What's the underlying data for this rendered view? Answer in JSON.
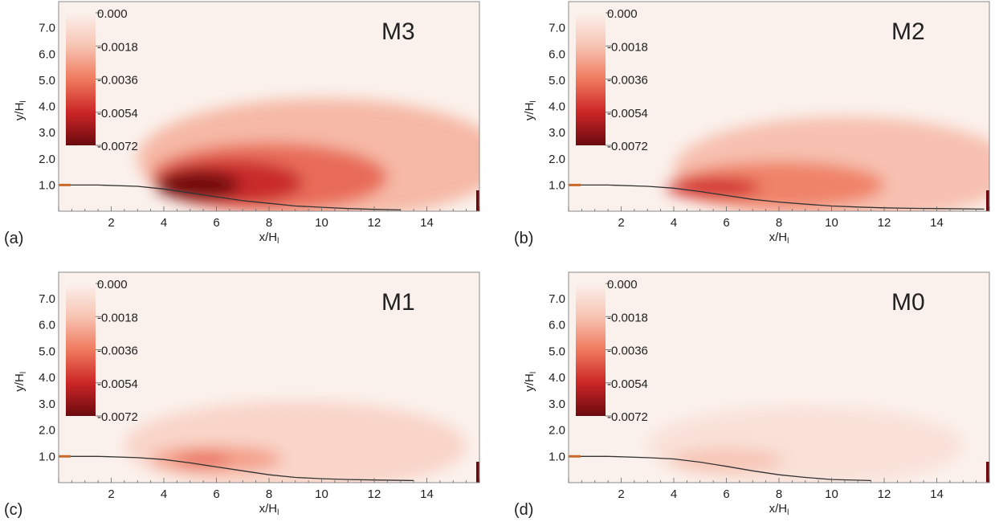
{
  "figure": {
    "colorbar": {
      "ticks": [
        "0.000",
        "-0.0018",
        "-0.0036",
        "-0.0054",
        "-0.0072"
      ],
      "colors": [
        "#fbf1ec",
        "#f7c4b3",
        "#ef7a5e",
        "#cc2626",
        "#6b0a0f"
      ]
    },
    "colors": {
      "background": "#fbf1ec",
      "frame": "#8a8a8a",
      "step_marker": "#c8692a",
      "interface_line": "#333333"
    }
  },
  "chart_data": [
    {
      "type": "heatmap",
      "panel_label": "(a)",
      "case_label": "M3",
      "xlabel": "x/H",
      "xlabel_sub": "l",
      "ylabel": "y/H",
      "ylabel_sub": "l",
      "xlim": [
        0,
        16
      ],
      "ylim": [
        0,
        8
      ],
      "x_ticks": [
        "2",
        "4",
        "6",
        "8",
        "10",
        "12",
        "14"
      ],
      "y_ticks": [
        "1.0",
        "2.0",
        "3.0",
        "4.0",
        "5.0",
        "6.0",
        "7.0"
      ],
      "colorbar_range": [
        -0.0072,
        0.0
      ],
      "interface_line": {
        "x": [
          0,
          1.5,
          3,
          4,
          5,
          6,
          7,
          8,
          9,
          10,
          11,
          12,
          13
        ],
        "y": [
          1.0,
          1.0,
          0.95,
          0.85,
          0.7,
          0.55,
          0.4,
          0.3,
          0.2,
          0.15,
          0.1,
          0.07,
          0.05
        ]
      },
      "regions": [
        {
          "x": 10,
          "y": 2.0,
          "rx": 7.0,
          "ry": 2.3,
          "value": -0.0022
        },
        {
          "x": 8,
          "y": 1.3,
          "rx": 4.5,
          "ry": 1.3,
          "value": -0.004
        },
        {
          "x": 6.5,
          "y": 1.1,
          "rx": 2.8,
          "ry": 0.85,
          "value": -0.0055
        },
        {
          "x": 5.3,
          "y": 1.0,
          "rx": 1.6,
          "ry": 0.55,
          "value": -0.0072
        }
      ]
    },
    {
      "type": "heatmap",
      "panel_label": "(b)",
      "case_label": "M2",
      "xlabel": "x/H",
      "xlabel_sub": "l",
      "ylabel": "y/H",
      "ylabel_sub": "l",
      "xlim": [
        0,
        16
      ],
      "ylim": [
        0,
        8
      ],
      "x_ticks": [
        "2",
        "4",
        "6",
        "8",
        "10",
        "12",
        "14"
      ],
      "y_ticks": [
        "1.0",
        "2.0",
        "3.0",
        "4.0",
        "5.0",
        "6.0",
        "7.0"
      ],
      "colorbar_range": [
        -0.0072,
        0.0
      ],
      "interface_line": {
        "x": [
          0,
          1.5,
          3,
          4,
          5,
          6,
          7,
          8,
          9,
          10,
          11,
          12,
          13,
          14,
          15.8
        ],
        "y": [
          1.0,
          1.0,
          0.95,
          0.88,
          0.75,
          0.6,
          0.45,
          0.35,
          0.27,
          0.2,
          0.16,
          0.13,
          0.11,
          0.1,
          0.08
        ]
      },
      "regions": [
        {
          "x": 10.5,
          "y": 1.6,
          "rx": 6.5,
          "ry": 2.0,
          "value": -0.002
        },
        {
          "x": 8,
          "y": 1.0,
          "rx": 4.0,
          "ry": 0.9,
          "value": -0.0035
        },
        {
          "x": 5.5,
          "y": 0.9,
          "rx": 1.8,
          "ry": 0.4,
          "value": -0.0052
        }
      ]
    },
    {
      "type": "heatmap",
      "panel_label": "(c)",
      "case_label": "M1",
      "xlabel": "x/H",
      "xlabel_sub": "l",
      "ylabel": "y/H",
      "ylabel_sub": "l",
      "xlim": [
        0,
        16
      ],
      "ylim": [
        0,
        8
      ],
      "x_ticks": [
        "2",
        "4",
        "6",
        "8",
        "10",
        "12",
        "14"
      ],
      "y_ticks": [
        "1.0",
        "2.0",
        "3.0",
        "4.0",
        "5.0",
        "6.0",
        "7.0"
      ],
      "colorbar_range": [
        -0.0072,
        0.0
      ],
      "interface_line": {
        "x": [
          0,
          1.5,
          3,
          4,
          5,
          6,
          7,
          8,
          9,
          10,
          11,
          12,
          13.5
        ],
        "y": [
          1.0,
          1.0,
          0.95,
          0.88,
          0.75,
          0.6,
          0.45,
          0.3,
          0.2,
          0.15,
          0.12,
          0.1,
          0.08
        ]
      },
      "regions": [
        {
          "x": 9,
          "y": 1.4,
          "rx": 6.5,
          "ry": 1.7,
          "value": -0.0012
        },
        {
          "x": 6,
          "y": 0.9,
          "rx": 2.5,
          "ry": 0.5,
          "value": -0.0028
        },
        {
          "x": 5.5,
          "y": 0.85,
          "rx": 1.0,
          "ry": 0.25,
          "value": -0.004
        }
      ]
    },
    {
      "type": "heatmap",
      "panel_label": "(d)",
      "case_label": "M0",
      "xlabel": "x/H",
      "xlabel_sub": "l",
      "ylabel": "y/H",
      "ylabel_sub": "l",
      "xlim": [
        0,
        16
      ],
      "ylim": [
        0,
        8
      ],
      "x_ticks": [
        "2",
        "4",
        "6",
        "8",
        "10",
        "12",
        "14"
      ],
      "y_ticks": [
        "1.0",
        "2.0",
        "3.0",
        "4.0",
        "5.0",
        "6.0",
        "7.0"
      ],
      "colorbar_range": [
        -0.0072,
        0.0
      ],
      "interface_line": {
        "x": [
          0,
          1.5,
          3,
          4,
          5,
          6,
          7,
          8,
          9,
          10,
          11.5
        ],
        "y": [
          1.0,
          1.0,
          0.95,
          0.9,
          0.78,
          0.62,
          0.45,
          0.3,
          0.2,
          0.12,
          0.08
        ]
      },
      "regions": [
        {
          "x": 9,
          "y": 1.4,
          "rx": 6.0,
          "ry": 1.5,
          "value": -0.0007
        },
        {
          "x": 6,
          "y": 0.85,
          "rx": 2.2,
          "ry": 0.45,
          "value": -0.0018
        }
      ]
    }
  ]
}
